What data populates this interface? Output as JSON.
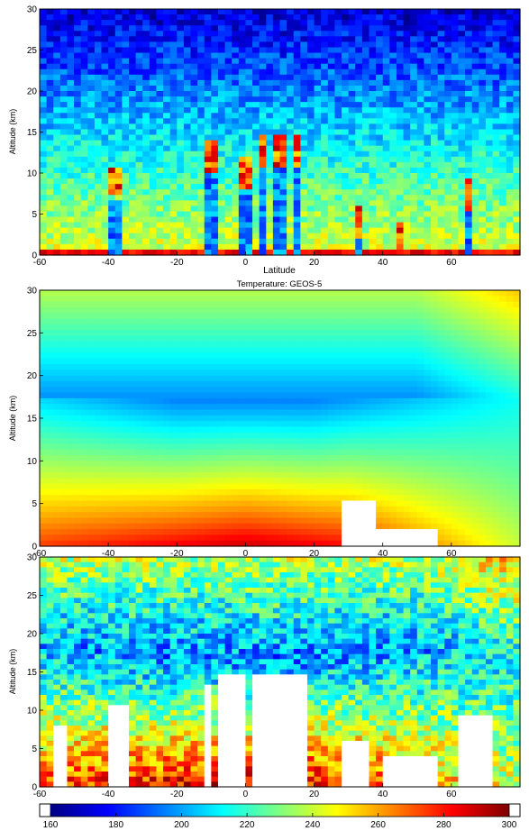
{
  "chart_data": [
    {
      "type": "heatmap",
      "title": "",
      "xlabel": "Latitude",
      "ylabel": "Altitude (km)",
      "xlim": [
        -60,
        80
      ],
      "ylim": [
        0,
        30
      ],
      "x_ticks": [
        "-60",
        "-40",
        "-20",
        "0",
        "20",
        "40",
        "60"
      ],
      "y_ticks": [
        "0",
        "5",
        "10",
        "15",
        "20",
        "25",
        "30"
      ],
      "pattern": "noisy-retrieval",
      "cloud_features": [
        {
          "lat": -38,
          "top": 11
        },
        {
          "lat": -10,
          "top": 14
        },
        {
          "lat": 0,
          "top": 12
        },
        {
          "lat": 5,
          "top": 14.5
        },
        {
          "lat": 10,
          "top": 14.5
        },
        {
          "lat": 15,
          "top": 14.5
        },
        {
          "lat": 33,
          "top": 6
        },
        {
          "lat": 45,
          "top": 4
        },
        {
          "lat": 65,
          "top": 9.5
        }
      ]
    },
    {
      "type": "heatmap",
      "title": "Temperature: GEOS-5",
      "xlabel": "",
      "ylabel": "Altitude (km)",
      "xlim": [
        -60,
        80
      ],
      "ylim": [
        0,
        30
      ],
      "x_ticks": [
        "-60",
        "-40",
        "-20",
        "0",
        "20",
        "40",
        "60"
      ],
      "y_ticks": [
        "0",
        "5",
        "10",
        "15",
        "20",
        "25",
        "30"
      ],
      "pattern": "smooth-model",
      "blank_regions": [
        {
          "lat0": 28,
          "lat1": 38,
          "top": 5
        },
        {
          "lat0": 38,
          "lat1": 55,
          "top": 2
        }
      ]
    },
    {
      "type": "heatmap",
      "title": "",
      "xlabel": "",
      "ylabel": "Altitude (km)",
      "xlim": [
        -60,
        80
      ],
      "ylim": [
        0,
        30
      ],
      "x_ticks": [
        "-60",
        "-40",
        "-20",
        "0",
        "20",
        "40",
        "60"
      ],
      "y_ticks": [
        "0",
        "5",
        "10",
        "15",
        "20",
        "25",
        "30"
      ],
      "pattern": "noisy-difference",
      "blank_regions": [
        {
          "lat0": -55,
          "lat1": -52,
          "top": 8
        },
        {
          "lat0": -40,
          "lat1": -35,
          "top": 10.5
        },
        {
          "lat0": -12,
          "lat1": -10,
          "top": 13
        },
        {
          "lat0": -7,
          "lat1": 0,
          "top": 14.5
        },
        {
          "lat0": 2,
          "lat1": 18,
          "top": 14.5
        },
        {
          "lat0": 28,
          "lat1": 36,
          "top": 6
        },
        {
          "lat0": 40,
          "lat1": 55,
          "top": 4
        },
        {
          "lat0": 63,
          "lat1": 72,
          "top": 9
        }
      ]
    }
  ],
  "colorbar": {
    "ticks": [
      "160",
      "180",
      "200",
      "220",
      "240",
      "260",
      "280",
      "300"
    ],
    "range": [
      160,
      300
    ]
  },
  "colors": {
    "colormap": [
      "#00007f",
      "#0000ff",
      "#007fff",
      "#00ffff",
      "#7fff7f",
      "#ffff00",
      "#ff7f00",
      "#ff0000",
      "#7f0000"
    ]
  }
}
